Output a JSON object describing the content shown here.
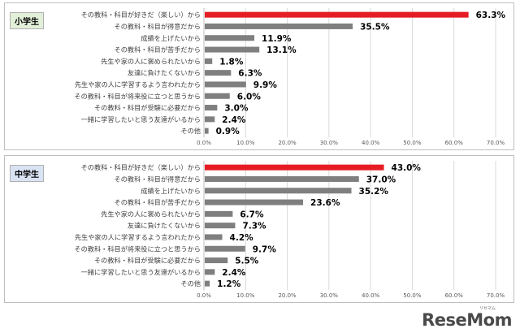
{
  "colors": {
    "highlight": "#e51c23",
    "bar": "#7f7f7f",
    "grid": "#d9d9d9",
    "text": "#404040"
  },
  "logo": {
    "text": "ReseMom",
    "sub": "リセマム"
  },
  "chart_data": [
    {
      "type": "bar",
      "orientation": "horizontal",
      "title": "",
      "badge": "小学生",
      "categories": [
        "その教科・科目が好きだ（楽しい）から",
        "その教科・科目が得意だから",
        "成績を上げたいから",
        "その教科・科目が苦手だから",
        "先生や家の人に褒められたいから",
        "友達に負けたくないから",
        "先生や家の人に学習するよう言われたから",
        "その教科・科目が将来役に立つと思うから",
        "その教科・科目が受験に必要だから",
        "一緒に学習したいと思う友達がいるから",
        "その他"
      ],
      "values": [
        63.3,
        35.5,
        11.9,
        13.1,
        1.8,
        6.3,
        9.9,
        6.0,
        3.0,
        2.4,
        0.9
      ],
      "value_labels": [
        "63.3%",
        "35.5%",
        "11.9%",
        "13.1%",
        "1.8%",
        "6.3%",
        "9.9%",
        "6.0%",
        "3.0%",
        "2.4%",
        "0.9%"
      ],
      "highlight_index": 0,
      "xlim": [
        0,
        70
      ],
      "ticks": [
        "0.0%",
        "10.0%",
        "20.0%",
        "30.0%",
        "40.0%",
        "50.0%",
        "60.0%",
        "70.0%"
      ],
      "grid": true,
      "legend": "none"
    },
    {
      "type": "bar",
      "orientation": "horizontal",
      "title": "",
      "badge": "中学生",
      "categories": [
        "その教科・科目が好きだ（楽しい）から",
        "その教科・科目が得意だから",
        "成績を上げたいから",
        "その教科・科目が苦手だから",
        "先生や家の人に褒められたいから",
        "友達に負けたくないから",
        "先生や家の人に学習するよう言われたから",
        "その教科・科目が将来役に立つと思うから",
        "その教科・科目が受験に必要だから",
        "一緒に学習したいと思う友達がいるから",
        "その他"
      ],
      "values": [
        43.0,
        37.0,
        35.2,
        23.6,
        6.7,
        7.3,
        4.2,
        9.7,
        5.5,
        2.4,
        1.2
      ],
      "value_labels": [
        "43.0%",
        "37.0%",
        "35.2%",
        "23.6%",
        "6.7%",
        "7.3%",
        "4.2%",
        "9.7%",
        "5.5%",
        "2.4%",
        "1.2%"
      ],
      "highlight_index": 0,
      "xlim": [
        0,
        70
      ],
      "ticks": [
        "0.0%",
        "10.0%",
        "20.0%",
        "30.0%",
        "40.0%",
        "50.0%",
        "60.0%",
        "70.0%"
      ],
      "grid": true,
      "legend": "none"
    }
  ]
}
